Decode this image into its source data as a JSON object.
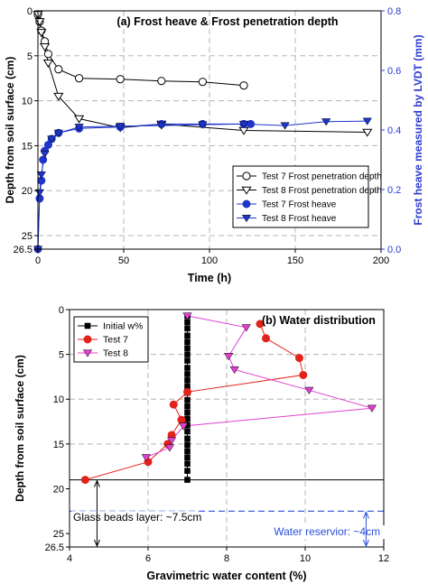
{
  "chart_data": [
    {
      "type": "scatter",
      "panel": "a",
      "title": "(a) Frost heave & Frost penetration depth",
      "xlabel": "Time (h)",
      "ylabel_left": "Depth from soil surface (cm)",
      "ylabel_right": "Frost heave measured by LVDT (mm)",
      "xlim": [
        0,
        200
      ],
      "ylim_left": [
        0,
        26.5
      ],
      "ylim_right": [
        0,
        0.8
      ],
      "left_axis_inverted": true,
      "xticks": [
        0,
        50,
        100,
        150,
        200
      ],
      "yticks_left": [
        0,
        5,
        10,
        15,
        20,
        25,
        26.5
      ],
      "yticks_right": [
        0.0,
        0.2,
        0.4,
        0.6,
        0.8
      ],
      "grid": "dashed",
      "legend_position": "bottom-right",
      "colors": {
        "black": "#000000",
        "blue": "#1f35c8",
        "right_axis": "#2b3bd0"
      },
      "series": [
        {
          "name": "Test 7 Frost penetration depth",
          "axis": "left",
          "marker": "circle-open",
          "color": "#000000",
          "x": [
            0,
            1,
            2,
            4,
            6,
            12,
            24,
            48,
            72,
            96,
            120
          ],
          "y": [
            0.4,
            1.2,
            2.2,
            3.4,
            4.8,
            6.5,
            7.5,
            7.6,
            7.8,
            7.9,
            8.3
          ]
        },
        {
          "name": "Test 8 Frost penetration depth",
          "axis": "left",
          "marker": "triangle-down-open",
          "color": "#000000",
          "x": [
            0,
            1,
            2,
            4,
            6,
            12,
            24,
            48,
            72,
            120,
            192
          ],
          "y": [
            0.4,
            1.2,
            2.4,
            4.0,
            5.8,
            9.5,
            12.0,
            13.0,
            12.6,
            13.3,
            13.5
          ]
        },
        {
          "name": "Test 7 Frost heave",
          "axis": "right",
          "marker": "circle-filled",
          "color": "#1f35c8",
          "x": [
            0,
            1,
            2,
            3,
            4,
            6,
            8,
            12,
            24,
            48,
            72,
            96,
            120,
            124
          ],
          "y": [
            0.0,
            0.17,
            0.23,
            0.3,
            0.33,
            0.35,
            0.37,
            0.39,
            0.405,
            0.41,
            0.42,
            0.42,
            0.42,
            0.42
          ]
        },
        {
          "name": "Test 8 Frost heave",
          "axis": "right",
          "marker": "triangle-down-filled",
          "color": "#1f35c8",
          "x": [
            0,
            1,
            2,
            4,
            8,
            12,
            24,
            48,
            72,
            96,
            120,
            144,
            168,
            192
          ],
          "y": [
            0.0,
            0.19,
            0.25,
            0.32,
            0.37,
            0.39,
            0.41,
            0.413,
            0.415,
            0.418,
            0.42,
            0.415,
            0.428,
            0.43
          ]
        }
      ]
    },
    {
      "type": "line",
      "panel": "b",
      "title": "(b) Water distribution",
      "xlabel": "Gravimetric water content (%)",
      "ylabel": "Depth from soil surface (cm)",
      "xlim": [
        4,
        12
      ],
      "ylim": [
        0,
        26.5
      ],
      "y_inverted": true,
      "xticks": [
        4,
        6,
        8,
        10,
        12
      ],
      "yticks": [
        0,
        5,
        10,
        15,
        20,
        25,
        26.5
      ],
      "grid": "dashed",
      "legend_position": "top-left",
      "colors": {
        "initial": "#000000",
        "test7": "#e2231a",
        "test8": "#e040d0",
        "reservoir": "#2b50d8"
      },
      "series": [
        {
          "name": "Initial w%",
          "marker": "square-filled",
          "color": "#000000",
          "x": [
            7.0,
            7.0,
            7.0,
            7.0,
            7.0,
            7.0,
            7.0,
            7.0,
            7.0,
            7.0,
            7.0,
            7.0,
            7.0,
            7.0,
            7.0,
            7.0,
            7.0,
            7.0,
            7.0,
            7.0,
            7.0,
            7.0,
            7.0,
            7.0,
            7.0,
            7.0
          ],
          "y": [
            0.7,
            1.4,
            2.1,
            2.9,
            3.6,
            4.3,
            5.0,
            5.7,
            6.5,
            7.2,
            7.9,
            8.6,
            9.3,
            10.1,
            10.8,
            11.5,
            12.2,
            12.9,
            13.6,
            14.4,
            15.1,
            15.8,
            16.5,
            17.2,
            18.0,
            19.0
          ]
        },
        {
          "name": "Test 7",
          "marker": "circle-filled",
          "color": "#e2231a",
          "x": [
            8.85,
            9.0,
            9.85,
            9.95,
            7.0,
            6.65,
            6.85,
            6.6,
            6.5,
            6.0,
            4.4
          ],
          "y": [
            1.6,
            3.2,
            5.4,
            7.3,
            9.2,
            10.6,
            12.3,
            14.0,
            15.0,
            17.0,
            19.0
          ],
          "annotation": "Glass beads layer: ~7.5cm"
        },
        {
          "name": "Test 8",
          "marker": "triangle-down-filled",
          "color": "#e040d0",
          "x": [
            7.0,
            8.5,
            8.05,
            8.2,
            10.1,
            11.7,
            6.9,
            6.6,
            6.55,
            5.95
          ],
          "y": [
            0.7,
            2.0,
            5.2,
            6.7,
            9.0,
            11.0,
            13.0,
            14.6,
            15.4,
            16.5
          ],
          "annotation": "Water reservior: ~4cm"
        }
      ],
      "annotations": {
        "glass_beads": "Glass beads layer: ~7.5cm",
        "reservoir": "Water reservior: ~4cm"
      }
    }
  ]
}
